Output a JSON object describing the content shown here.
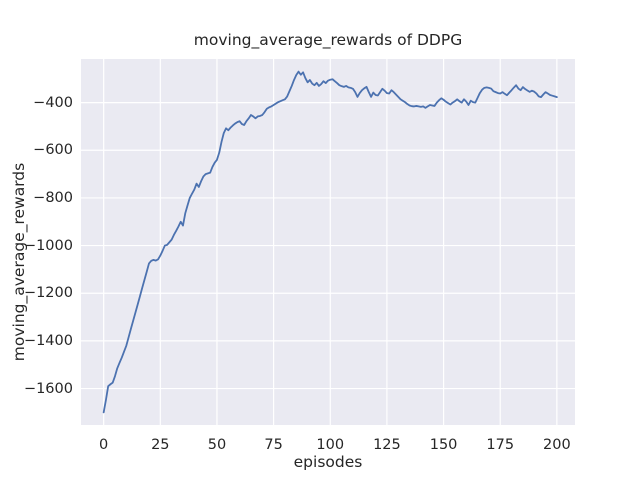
{
  "chart_data": {
    "type": "line",
    "title": "moving_average_rewards of DDPG",
    "xlabel": "episodes",
    "ylabel": "moving_average_rewards",
    "xlim": [
      -10,
      208
    ],
    "ylim": [
      -1753,
      -217
    ],
    "xticks": [
      0,
      25,
      50,
      75,
      100,
      125,
      150,
      175,
      200
    ],
    "yticks": [
      -400,
      -600,
      -800,
      -1000,
      -1200,
      -1400,
      -1600
    ],
    "grid": true,
    "legend": false,
    "style": {
      "axes_bg": "#eaeaf2",
      "grid_color": "#ffffff",
      "text_color": "#262626",
      "line_color": "#4c72b0"
    },
    "series": [
      {
        "name": "moving_average_rewards",
        "color": "#4c72b0",
        "x_start": 0,
        "x_step": 1,
        "values": [
          -1700,
          -1648,
          -1590,
          -1582,
          -1575,
          -1548,
          -1515,
          -1492,
          -1470,
          -1445,
          -1420,
          -1385,
          -1350,
          -1316,
          -1282,
          -1248,
          -1213,
          -1178,
          -1144,
          -1110,
          -1075,
          -1064,
          -1060,
          -1063,
          -1058,
          -1042,
          -1022,
          -1000,
          -997,
          -986,
          -975,
          -955,
          -938,
          -920,
          -900,
          -916,
          -865,
          -832,
          -800,
          -782,
          -765,
          -740,
          -754,
          -730,
          -710,
          -700,
          -697,
          -694,
          -670,
          -652,
          -640,
          -610,
          -565,
          -528,
          -508,
          -516,
          -505,
          -496,
          -488,
          -482,
          -478,
          -490,
          -494,
          -478,
          -466,
          -452,
          -458,
          -466,
          -458,
          -456,
          -452,
          -440,
          -426,
          -420,
          -416,
          -410,
          -404,
          -398,
          -394,
          -390,
          -386,
          -374,
          -352,
          -330,
          -305,
          -284,
          -270,
          -283,
          -273,
          -297,
          -315,
          -305,
          -320,
          -327,
          -317,
          -330,
          -322,
          -310,
          -318,
          -308,
          -304,
          -302,
          -310,
          -318,
          -327,
          -331,
          -334,
          -330,
          -336,
          -338,
          -342,
          -356,
          -376,
          -360,
          -348,
          -340,
          -334,
          -356,
          -376,
          -358,
          -368,
          -370,
          -356,
          -342,
          -350,
          -360,
          -362,
          -348,
          -356,
          -366,
          -376,
          -386,
          -392,
          -398,
          -406,
          -412,
          -415,
          -416,
          -414,
          -416,
          -418,
          -416,
          -422,
          -416,
          -410,
          -412,
          -414,
          -400,
          -390,
          -382,
          -388,
          -396,
          -402,
          -408,
          -400,
          -394,
          -386,
          -394,
          -400,
          -386,
          -396,
          -410,
          -392,
          -398,
          -400,
          -380,
          -360,
          -346,
          -338,
          -336,
          -338,
          -341,
          -352,
          -356,
          -360,
          -362,
          -356,
          -363,
          -369,
          -358,
          -348,
          -337,
          -327,
          -341,
          -348,
          -335,
          -343,
          -349,
          -355,
          -350,
          -354,
          -362,
          -374,
          -377,
          -366,
          -356,
          -362,
          -368,
          -371,
          -374,
          -377
        ]
      }
    ]
  }
}
